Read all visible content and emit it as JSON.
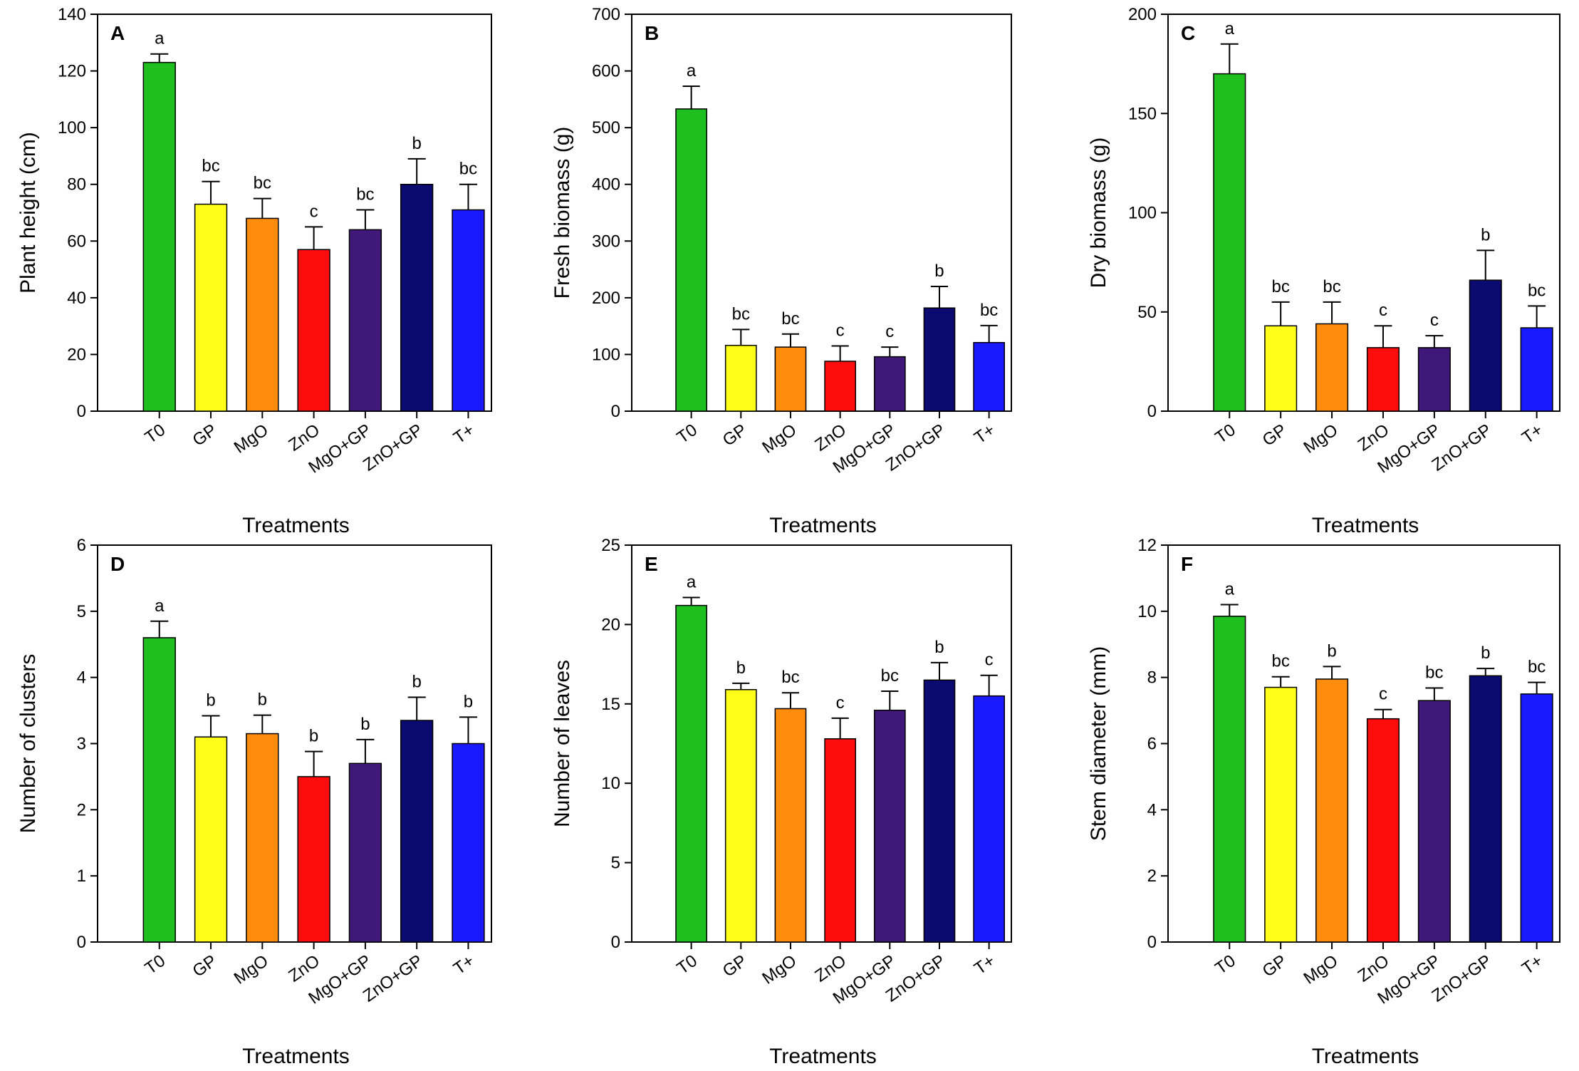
{
  "chart_data": [
    {
      "type": "bar",
      "panel": "A",
      "xlabel": "Treatments",
      "ylabel": "Plant height (cm)",
      "ylim": [
        0,
        140
      ],
      "yticks": [
        "0",
        "20",
        "40",
        "60",
        "80",
        "100",
        "120",
        "140"
      ],
      "categories": [
        "T0",
        "GP",
        "MgO",
        "ZnO",
        "MgO+GP",
        "ZnO+GP",
        "T+"
      ],
      "values": [
        123,
        73,
        68,
        57,
        64,
        80,
        71
      ],
      "errors": [
        3,
        8,
        7,
        8,
        7,
        9,
        9
      ],
      "letters": [
        "a",
        "bc",
        "bc",
        "c",
        "bc",
        "b",
        "bc"
      ]
    },
    {
      "type": "bar",
      "panel": "B",
      "xlabel": "Treatments",
      "ylabel": "Fresh biomass (g)",
      "ylim": [
        0,
        700
      ],
      "yticks": [
        "0",
        "100",
        "200",
        "300",
        "400",
        "500",
        "600",
        "700"
      ],
      "categories": [
        "T0",
        "GP",
        "MgO",
        "ZnO",
        "MgO+GP",
        "ZnO+GP",
        "T+"
      ],
      "values": [
        533,
        116,
        113,
        88,
        96,
        182,
        121
      ],
      "errors": [
        40,
        28,
        23,
        27,
        17,
        38,
        30
      ],
      "letters": [
        "a",
        "bc",
        "bc",
        "c",
        "c",
        "b",
        "bc"
      ]
    },
    {
      "type": "bar",
      "panel": "C",
      "xlabel": "Treatments",
      "ylabel": "Dry biomass (g)",
      "ylim": [
        0,
        200
      ],
      "yticks": [
        "0",
        "50",
        "100",
        "150",
        "200"
      ],
      "categories": [
        "T0",
        "GP",
        "MgO",
        "ZnO",
        "MgO+GP",
        "ZnO+GP",
        "T+"
      ],
      "values": [
        170,
        43,
        44,
        32,
        32,
        66,
        42
      ],
      "errors": [
        15,
        12,
        11,
        11,
        6,
        15,
        11
      ],
      "letters": [
        "a",
        "bc",
        "bc",
        "c",
        "c",
        "b",
        "bc"
      ]
    },
    {
      "type": "bar",
      "panel": "D",
      "xlabel": "Treatments",
      "ylabel": "Number of clusters",
      "ylim": [
        0,
        6
      ],
      "yticks": [
        "0",
        "1",
        "2",
        "3",
        "4",
        "5",
        "6"
      ],
      "categories": [
        "T0",
        "GP",
        "MgO",
        "ZnO",
        "MgO+GP",
        "ZnO+GP",
        "T+"
      ],
      "values": [
        4.6,
        3.1,
        3.15,
        2.5,
        2.7,
        3.35,
        3.0
      ],
      "errors": [
        0.25,
        0.32,
        0.28,
        0.38,
        0.36,
        0.35,
        0.4
      ],
      "letters": [
        "a",
        "b",
        "b",
        "b",
        "b",
        "b",
        "b"
      ]
    },
    {
      "type": "bar",
      "panel": "E",
      "xlabel": "Treatments",
      "ylabel": "Number of leaves",
      "ylim": [
        0,
        25
      ],
      "yticks": [
        "0",
        "5",
        "10",
        "15",
        "20",
        "25"
      ],
      "categories": [
        "T0",
        "GP",
        "MgO",
        "ZnO",
        "MgO+GP",
        "ZnO+GP",
        "T+"
      ],
      "values": [
        21.2,
        15.9,
        14.7,
        12.8,
        14.6,
        16.5,
        15.5
      ],
      "errors": [
        0.5,
        0.4,
        1.0,
        1.3,
        1.2,
        1.1,
        1.3
      ],
      "letters": [
        "a",
        "b",
        "bc",
        "c",
        "bc",
        "b",
        "c"
      ]
    },
    {
      "type": "bar",
      "panel": "F",
      "xlabel": "Treatments",
      "ylabel": "Stem diameter (mm)",
      "ylim": [
        0,
        12
      ],
      "yticks": [
        "0",
        "2",
        "4",
        "6",
        "8",
        "10",
        "12"
      ],
      "categories": [
        "T0",
        "GP",
        "MgO",
        "ZnO",
        "MgO+GP",
        "ZnO+GP",
        "T+"
      ],
      "values": [
        9.85,
        7.7,
        7.95,
        6.75,
        7.3,
        8.05,
        7.5
      ],
      "errors": [
        0.35,
        0.32,
        0.38,
        0.28,
        0.38,
        0.22,
        0.35
      ],
      "letters": [
        "a",
        "bc",
        "b",
        "c",
        "bc",
        "b",
        "bc"
      ]
    }
  ],
  "colors": {
    "T0": "#1fbf1f",
    "GP": "#ffff1a",
    "MgO": "#ff8c0d",
    "ZnO": "#ff0d0d",
    "MgO+GP": "#40187a",
    "ZnO+GP": "#0a0a70",
    "T+": "#1a1aff"
  }
}
